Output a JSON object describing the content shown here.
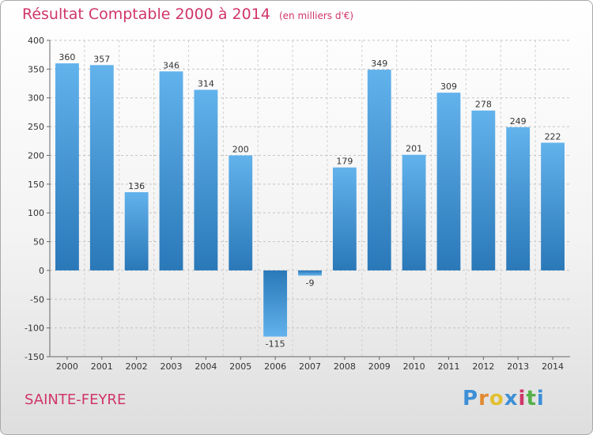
{
  "title": "Résultat Comptable 2000 à 2014",
  "subtitle": "(en milliers d'€)",
  "commune": "SAINTE-FEYRE",
  "logo": {
    "text": "Proxiti",
    "letters": [
      "P",
      "r",
      "o",
      "x",
      "i",
      "t",
      "i"
    ]
  },
  "colors": {
    "accent": "#d0356a",
    "bar_light": "#62b2ec",
    "bar_dark": "#2a78b8"
  },
  "chart_data": {
    "type": "bar",
    "title": "Résultat Comptable 2000 à 2014",
    "subtitle": "(en milliers d'€)",
    "xlabel": "",
    "ylabel": "",
    "categories": [
      "2000",
      "2001",
      "2002",
      "2003",
      "2004",
      "2005",
      "2006",
      "2007",
      "2008",
      "2009",
      "2010",
      "2011",
      "2012",
      "2013",
      "2014"
    ],
    "values": [
      360,
      357,
      136,
      346,
      314,
      200,
      -115,
      -9,
      179,
      349,
      201,
      309,
      278,
      249,
      222
    ],
    "ylim": [
      -150,
      400
    ],
    "yticks": [
      -150,
      -100,
      -50,
      0,
      50,
      100,
      150,
      200,
      250,
      300,
      350,
      400
    ],
    "grid": true
  }
}
